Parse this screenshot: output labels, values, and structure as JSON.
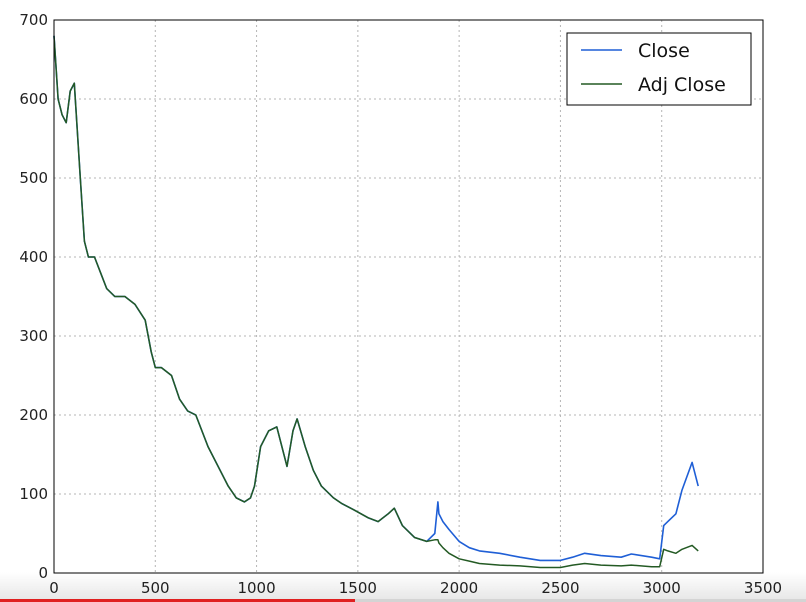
{
  "chart_data": {
    "type": "line",
    "title": "",
    "xlabel": "",
    "ylabel": "",
    "xlim": [
      0,
      3500
    ],
    "ylim": [
      0,
      700
    ],
    "xticks": [
      0,
      500,
      1000,
      1500,
      2000,
      2500,
      3000,
      3500
    ],
    "yticks": [
      0,
      100,
      200,
      300,
      400,
      500,
      600,
      700
    ],
    "grid": true,
    "legend_position": "top-right",
    "colors": {
      "close": "#1f5fd6",
      "adj_close": "#245a24"
    },
    "series": [
      {
        "name": "Close",
        "x": [
          0,
          20,
          40,
          60,
          80,
          100,
          110,
          130,
          150,
          170,
          200,
          230,
          260,
          300,
          350,
          400,
          450,
          480,
          500,
          530,
          580,
          620,
          660,
          700,
          760,
          820,
          860,
          900,
          940,
          970,
          990,
          1020,
          1060,
          1100,
          1150,
          1180,
          1200,
          1240,
          1280,
          1320,
          1380,
          1420,
          1480,
          1550,
          1600,
          1650,
          1680,
          1720,
          1780,
          1840,
          1880,
          1895,
          1900,
          1920,
          1950,
          2000,
          2050,
          2100,
          2200,
          2300,
          2400,
          2500,
          2560,
          2620,
          2700,
          2800,
          2850,
          2950,
          2990,
          3010,
          3030,
          3070,
          3100,
          3150,
          3180
        ],
        "y": [
          680,
          600,
          580,
          570,
          610,
          620,
          580,
          500,
          420,
          400,
          400,
          380,
          360,
          350,
          350,
          340,
          320,
          280,
          260,
          260,
          250,
          220,
          205,
          200,
          160,
          130,
          110,
          95,
          90,
          95,
          110,
          160,
          180,
          185,
          135,
          180,
          195,
          160,
          130,
          110,
          95,
          88,
          80,
          70,
          65,
          75,
          82,
          60,
          45,
          40,
          50,
          90,
          75,
          65,
          55,
          40,
          32,
          28,
          25,
          20,
          16,
          16,
          20,
          25,
          22,
          20,
          24,
          20,
          18,
          60,
          65,
          75,
          105,
          140,
          110
        ]
      },
      {
        "name": "Adj Close",
        "x": [
          0,
          20,
          40,
          60,
          80,
          100,
          110,
          130,
          150,
          170,
          200,
          230,
          260,
          300,
          350,
          400,
          450,
          480,
          500,
          530,
          580,
          620,
          660,
          700,
          760,
          820,
          860,
          900,
          940,
          970,
          990,
          1020,
          1060,
          1100,
          1150,
          1180,
          1200,
          1240,
          1280,
          1320,
          1380,
          1420,
          1480,
          1550,
          1600,
          1650,
          1680,
          1720,
          1780,
          1840,
          1880,
          1895,
          1900,
          1920,
          1950,
          2000,
          2050,
          2100,
          2200,
          2300,
          2400,
          2500,
          2560,
          2620,
          2700,
          2800,
          2850,
          2950,
          2990,
          3010,
          3030,
          3070,
          3100,
          3150,
          3180
        ],
        "y": [
          680,
          600,
          580,
          570,
          610,
          620,
          580,
          500,
          420,
          400,
          400,
          380,
          360,
          350,
          350,
          340,
          320,
          280,
          260,
          260,
          250,
          220,
          205,
          200,
          160,
          130,
          110,
          95,
          90,
          95,
          110,
          160,
          180,
          185,
          135,
          180,
          195,
          160,
          130,
          110,
          95,
          88,
          80,
          70,
          65,
          75,
          82,
          60,
          45,
          40,
          42,
          42,
          38,
          32,
          25,
          18,
          15,
          12,
          10,
          9,
          7,
          7,
          10,
          12,
          10,
          9,
          10,
          8,
          8,
          30,
          28,
          25,
          30,
          35,
          28
        ]
      }
    ]
  },
  "player": {
    "progress_fraction": 0.44
  }
}
